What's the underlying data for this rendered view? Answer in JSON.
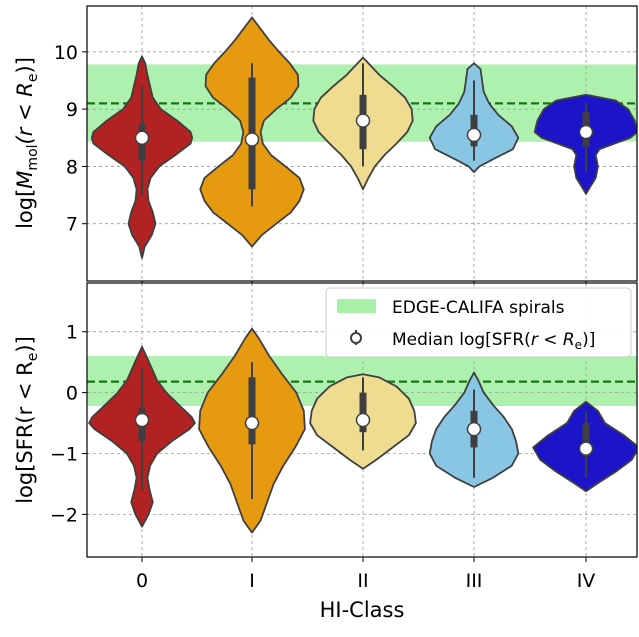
{
  "chart_data": [
    {
      "type": "violin",
      "panel": "top",
      "ylabel": "log[M_mol(r < R_e)]",
      "ylabel_parts": {
        "pre": "log[",
        "M": "M",
        "sub": "mol",
        "mid": "(r < R",
        "sub2": "e",
        "post": ")]"
      },
      "ylim": [
        6.0,
        10.8
      ],
      "yticks": [
        7,
        8,
        9,
        10
      ],
      "yticklabels": [
        "7",
        "8",
        "9",
        "10"
      ],
      "grid": true,
      "reference": {
        "median": 9.1,
        "band": [
          8.43,
          9.78
        ]
      },
      "categories": [
        "0",
        "I",
        "II",
        "III",
        "IV"
      ],
      "colors": [
        "#b22222",
        "#e69a10",
        "#eedd90",
        "#88c6e3",
        "#1c14c8"
      ],
      "violins": [
        {
          "profile": [
            [
              6.4,
              0.0
            ],
            [
              6.6,
              0.05
            ],
            [
              6.8,
              0.18
            ],
            [
              7.0,
              0.25
            ],
            [
              7.2,
              0.2
            ],
            [
              7.4,
              0.12
            ],
            [
              7.6,
              0.1
            ],
            [
              7.8,
              0.16
            ],
            [
              8.0,
              0.32
            ],
            [
              8.2,
              0.62
            ],
            [
              8.4,
              0.9
            ],
            [
              8.5,
              0.93
            ],
            [
              8.6,
              0.9
            ],
            [
              8.8,
              0.65
            ],
            [
              9.0,
              0.35
            ],
            [
              9.2,
              0.2
            ],
            [
              9.4,
              0.15
            ],
            [
              9.6,
              0.1
            ],
            [
              9.8,
              0.06
            ],
            [
              9.92,
              0.0
            ]
          ],
          "median": 8.5,
          "q1": 8.1,
          "q3": 8.75,
          "whisker": [
            7.5,
            9.4
          ]
        },
        {
          "profile": [
            [
              6.6,
              0.0
            ],
            [
              6.8,
              0.18
            ],
            [
              7.0,
              0.45
            ],
            [
              7.2,
              0.72
            ],
            [
              7.4,
              0.88
            ],
            [
              7.6,
              0.96
            ],
            [
              7.8,
              0.88
            ],
            [
              8.0,
              0.62
            ],
            [
              8.2,
              0.35
            ],
            [
              8.4,
              0.2
            ],
            [
              8.6,
              0.16
            ],
            [
              8.8,
              0.22
            ],
            [
              9.0,
              0.45
            ],
            [
              9.2,
              0.72
            ],
            [
              9.4,
              0.86
            ],
            [
              9.6,
              0.85
            ],
            [
              9.8,
              0.7
            ],
            [
              10.0,
              0.5
            ],
            [
              10.2,
              0.32
            ],
            [
              10.4,
              0.16
            ],
            [
              10.6,
              0.0
            ]
          ],
          "median": 8.47,
          "q1": 7.6,
          "q3": 9.55,
          "whisker": [
            7.3,
            9.8
          ]
        },
        {
          "profile": [
            [
              7.6,
              0.0
            ],
            [
              7.8,
              0.1
            ],
            [
              8.0,
              0.22
            ],
            [
              8.2,
              0.4
            ],
            [
              8.4,
              0.62
            ],
            [
              8.6,
              0.82
            ],
            [
              8.8,
              0.92
            ],
            [
              9.0,
              0.9
            ],
            [
              9.2,
              0.78
            ],
            [
              9.4,
              0.55
            ],
            [
              9.6,
              0.3
            ],
            [
              9.8,
              0.1
            ],
            [
              9.9,
              0.0
            ]
          ],
          "median": 8.8,
          "q1": 8.3,
          "q3": 9.25,
          "whisker": [
            8.0,
            9.8
          ]
        },
        {
          "profile": [
            [
              7.9,
              0.0
            ],
            [
              8.0,
              0.1
            ],
            [
              8.1,
              0.3
            ],
            [
              8.3,
              0.72
            ],
            [
              8.5,
              0.82
            ],
            [
              8.7,
              0.7
            ],
            [
              8.9,
              0.45
            ],
            [
              9.1,
              0.28
            ],
            [
              9.3,
              0.18
            ],
            [
              9.5,
              0.15
            ],
            [
              9.7,
              0.12
            ],
            [
              9.8,
              0.0
            ]
          ],
          "median": 8.55,
          "q1": 8.35,
          "q3": 8.9,
          "whisker": [
            8.1,
            9.5
          ]
        },
        {
          "profile": [
            [
              7.52,
              0.0
            ],
            [
              7.6,
              0.05
            ],
            [
              7.8,
              0.18
            ],
            [
              8.0,
              0.22
            ],
            [
              8.2,
              0.18
            ],
            [
              8.3,
              0.25
            ],
            [
              8.5,
              0.82
            ],
            [
              8.6,
              0.95
            ],
            [
              8.8,
              0.9
            ],
            [
              9.0,
              0.78
            ],
            [
              9.15,
              0.55
            ],
            [
              9.25,
              0.0
            ]
          ],
          "median": 8.6,
          "q1": 8.35,
          "q3": 8.95,
          "whisker": [
            7.9,
            9.1
          ]
        }
      ]
    },
    {
      "type": "violin",
      "panel": "bottom",
      "xlabel": "HI-Class",
      "ylabel": "log[SFR(r < R_e)]",
      "ylabel_parts": {
        "pre": "log[SFR(r < R",
        "sub": "e",
        "post": ")]"
      },
      "ylim": [
        -2.7,
        1.8
      ],
      "yticks": [
        -2,
        -1,
        0,
        1
      ],
      "yticklabels": [
        "−2",
        "−1",
        "0",
        "1"
      ],
      "grid": true,
      "reference": {
        "median": 0.18,
        "band": [
          -0.22,
          0.6
        ]
      },
      "categories": [
        "0",
        "I",
        "II",
        "III",
        "IV"
      ],
      "colors": [
        "#b22222",
        "#e69a10",
        "#eedd90",
        "#88c6e3",
        "#1c14c8"
      ],
      "violins": [
        {
          "profile": [
            [
              -2.2,
              0.0
            ],
            [
              -2.0,
              0.12
            ],
            [
              -1.8,
              0.2
            ],
            [
              -1.6,
              0.14
            ],
            [
              -1.4,
              0.1
            ],
            [
              -1.2,
              0.15
            ],
            [
              -1.0,
              0.28
            ],
            [
              -0.8,
              0.55
            ],
            [
              -0.6,
              0.88
            ],
            [
              -0.5,
              0.98
            ],
            [
              -0.4,
              0.92
            ],
            [
              -0.2,
              0.68
            ],
            [
              0.0,
              0.45
            ],
            [
              0.2,
              0.28
            ],
            [
              0.4,
              0.18
            ],
            [
              0.6,
              0.08
            ],
            [
              0.75,
              0.0
            ]
          ],
          "median": -0.45,
          "q1": -0.8,
          "q3": -0.25,
          "whisker": [
            -1.6,
            0.4
          ]
        },
        {
          "profile": [
            [
              -2.3,
              0.0
            ],
            [
              -2.1,
              0.16
            ],
            [
              -1.8,
              0.28
            ],
            [
              -1.5,
              0.4
            ],
            [
              -1.2,
              0.58
            ],
            [
              -0.9,
              0.8
            ],
            [
              -0.6,
              0.98
            ],
            [
              -0.3,
              0.96
            ],
            [
              0.0,
              0.82
            ],
            [
              0.3,
              0.56
            ],
            [
              0.6,
              0.32
            ],
            [
              0.9,
              0.12
            ],
            [
              1.05,
              0.0
            ]
          ],
          "median": -0.5,
          "q1": -0.85,
          "q3": 0.25,
          "whisker": [
            -1.75,
            0.5
          ]
        },
        {
          "profile": [
            [
              -1.25,
              0.0
            ],
            [
              -1.1,
              0.25
            ],
            [
              -0.9,
              0.55
            ],
            [
              -0.7,
              0.85
            ],
            [
              -0.5,
              0.98
            ],
            [
              -0.3,
              0.95
            ],
            [
              -0.1,
              0.85
            ],
            [
              0.1,
              0.62
            ],
            [
              0.25,
              0.3
            ],
            [
              0.3,
              0.0
            ]
          ],
          "median": -0.45,
          "q1": -0.65,
          "q3": 0.0,
          "whisker": [
            -0.95,
            0.25
          ]
        },
        {
          "profile": [
            [
              -1.55,
              0.0
            ],
            [
              -1.4,
              0.35
            ],
            [
              -1.2,
              0.7
            ],
            [
              -1.0,
              0.82
            ],
            [
              -0.8,
              0.78
            ],
            [
              -0.6,
              0.7
            ],
            [
              -0.4,
              0.55
            ],
            [
              -0.2,
              0.35
            ],
            [
              0.0,
              0.18
            ],
            [
              0.2,
              0.08
            ],
            [
              0.33,
              0.0
            ]
          ],
          "median": -0.6,
          "q1": -0.9,
          "q3": -0.3,
          "whisker": [
            -1.4,
            0.05
          ]
        },
        {
          "profile": [
            [
              -1.62,
              0.0
            ],
            [
              -1.5,
              0.2
            ],
            [
              -1.3,
              0.55
            ],
            [
              -1.1,
              0.85
            ],
            [
              -0.9,
              0.98
            ],
            [
              -0.7,
              0.7
            ],
            [
              -0.5,
              0.35
            ],
            [
              -0.3,
              0.22
            ],
            [
              -0.15,
              0.0
            ]
          ],
          "median": -0.92,
          "q1": -1.05,
          "q3": -0.5,
          "whisker": [
            -1.4,
            -0.3
          ]
        }
      ],
      "legend": {
        "position": "upper-right",
        "entries": [
          {
            "label": "EDGE-CALIFA spirals",
            "kind": "band"
          },
          {
            "label_pre": "Median log[SFR(",
            "label_mid": "r < R",
            "label_sub": "e",
            "label_post": ")]",
            "kind": "marker"
          }
        ]
      }
    }
  ],
  "colors": {
    "band": "#9aee9a",
    "reference_line": "#157815",
    "box": "#3f3f3f",
    "median_marker": "#ffffff",
    "grid": "#9a9a9a"
  }
}
